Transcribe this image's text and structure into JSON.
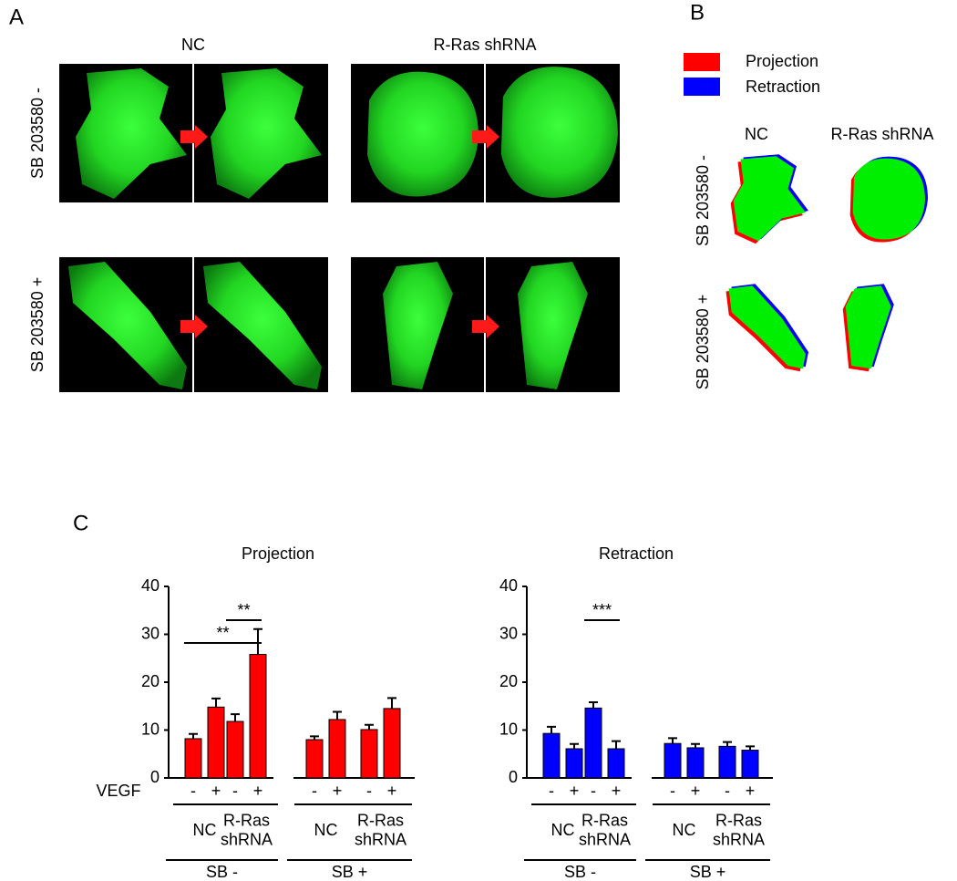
{
  "panel_a": {
    "label": "A",
    "columns": [
      "NC",
      "R-Ras shRNA"
    ],
    "rows": [
      "SB 203580 -",
      "SB 203580 +"
    ]
  },
  "panel_b": {
    "label": "B",
    "legend": [
      {
        "name": "Projection",
        "color": "#ff0000"
      },
      {
        "name": "Retraction",
        "color": "#0000ff"
      }
    ],
    "columns": [
      "NC",
      "R-Ras shRNA"
    ],
    "rows": [
      "SB 203580 -",
      "SB 203580 +"
    ]
  },
  "panel_c": {
    "label": "C"
  },
  "chart_data": [
    {
      "type": "bar",
      "title": "Projection",
      "color": "#ff0000",
      "categories": [
        "-",
        "+",
        "-",
        "+",
        "-",
        "+",
        "-",
        "+"
      ],
      "values": [
        8.2,
        14.8,
        11.8,
        25.8,
        8.0,
        12.2,
        10.1,
        14.5
      ],
      "errors": [
        1.0,
        1.8,
        1.5,
        5.3,
        0.7,
        1.6,
        1.0,
        2.2
      ],
      "row_label": "VEGF",
      "subgroup_labels": [
        "NC",
        "R-Ras shRNA",
        "NC",
        "R-Ras shRNA"
      ],
      "group_labels": [
        "SB -",
        "SB +"
      ],
      "annotations": [
        "**",
        "**"
      ],
      "ylim": [
        0,
        40
      ],
      "yticks": [
        0,
        10,
        20,
        30,
        40
      ]
    },
    {
      "type": "bar",
      "title": "Retraction",
      "color": "#0000ff",
      "categories": [
        "-",
        "+",
        "-",
        "+",
        "-",
        "+",
        "-",
        "+"
      ],
      "values": [
        9.3,
        6.1,
        14.6,
        6.1,
        7.2,
        6.3,
        6.6,
        5.8
      ],
      "errors": [
        1.4,
        1.0,
        1.2,
        1.6,
        1.1,
        0.8,
        0.9,
        0.8
      ],
      "subgroup_labels": [
        "NC",
        "R-Ras shRNA",
        "NC",
        "R-Ras shRNA"
      ],
      "group_labels": [
        "SB -",
        "SB +"
      ],
      "annotations": [
        "***"
      ],
      "ylim": [
        0,
        40
      ],
      "yticks": [
        0,
        10,
        20,
        30,
        40
      ]
    }
  ]
}
